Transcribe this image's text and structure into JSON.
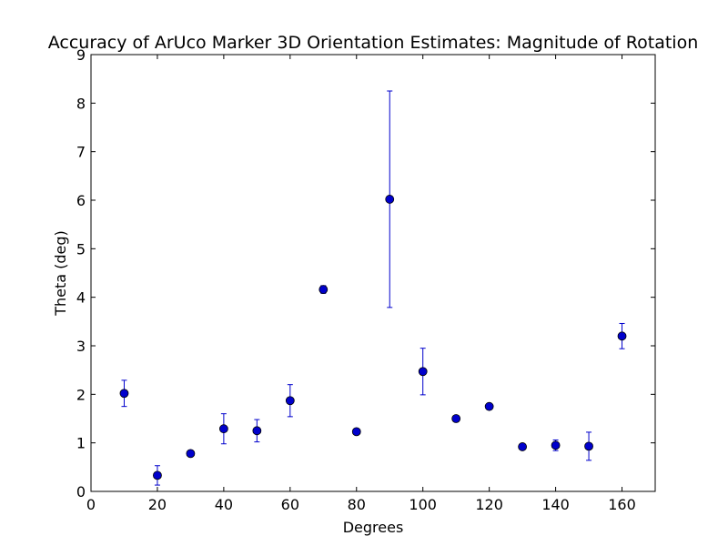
{
  "chart_data": {
    "type": "scatter",
    "title": "Accuracy of ArUco Marker 3D Orientation Estimates: Magnitude of Rotation",
    "xlabel": "Degrees",
    "ylabel": "Theta (deg)",
    "xlim": [
      0,
      170
    ],
    "ylim": [
      0,
      9
    ],
    "xticks": [
      0,
      20,
      40,
      60,
      80,
      100,
      120,
      140,
      160
    ],
    "yticks": [
      0,
      1,
      2,
      3,
      4,
      5,
      6,
      7,
      8,
      9
    ],
    "grid": false,
    "color": "#0000cc",
    "series": [
      {
        "points": [
          {
            "x": 10,
            "y": 2.02,
            "err": 0.27
          },
          {
            "x": 20,
            "y": 0.33,
            "err": 0.2
          },
          {
            "x": 30,
            "y": 0.78,
            "err": 0.02
          },
          {
            "x": 40,
            "y": 1.29,
            "err": 0.31
          },
          {
            "x": 50,
            "y": 1.25,
            "err": 0.23
          },
          {
            "x": 60,
            "y": 1.87,
            "err": 0.33
          },
          {
            "x": 70,
            "y": 4.16,
            "err": 0.08
          },
          {
            "x": 80,
            "y": 1.23,
            "err": 0.03
          },
          {
            "x": 90,
            "y": 6.02,
            "err": 2.23
          },
          {
            "x": 100,
            "y": 2.47,
            "err": 0.48
          },
          {
            "x": 110,
            "y": 1.5,
            "err": 0.03
          },
          {
            "x": 120,
            "y": 1.75,
            "err": 0.04
          },
          {
            "x": 130,
            "y": 0.92,
            "err": 0.02
          },
          {
            "x": 140,
            "y": 0.95,
            "err": 0.11
          },
          {
            "x": 150,
            "y": 0.93,
            "err": 0.29
          },
          {
            "x": 160,
            "y": 3.2,
            "err": 0.26
          }
        ]
      }
    ]
  }
}
